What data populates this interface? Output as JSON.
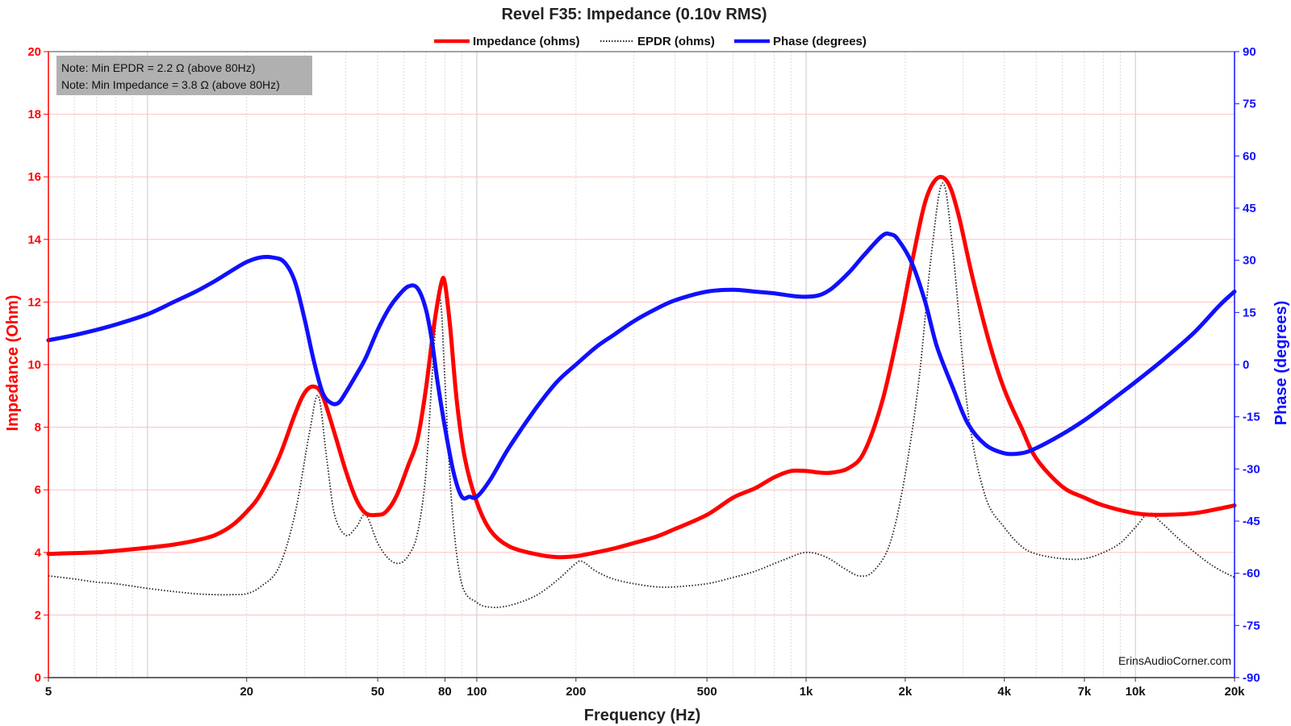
{
  "chart_data": {
    "type": "line",
    "title": "Revel F35: Impedance (0.10v RMS)",
    "xlabel": "Frequency (Hz)",
    "ylabel": "Impedance (Ohm)",
    "y2label": "Phase (degrees)",
    "xscale": "log",
    "xlim": [
      5,
      20000
    ],
    "ylim": [
      0,
      20
    ],
    "y2lim": [
      -90,
      90
    ],
    "x_ticks": [
      5,
      20,
      50,
      80,
      100,
      200,
      500,
      1000,
      2000,
      4000,
      7000,
      10000,
      20000
    ],
    "x_tick_labels": [
      "5",
      "20",
      "50",
      "80",
      "100",
      "200",
      "500",
      "1k",
      "2k",
      "4k",
      "7k",
      "10k",
      "20k"
    ],
    "y_ticks": [
      0,
      2,
      4,
      6,
      8,
      10,
      12,
      14,
      16,
      18,
      20
    ],
    "y_tick_labels": [
      "0",
      "2",
      "4",
      "6",
      "8",
      "10",
      "12",
      "14",
      "16",
      "18",
      "20"
    ],
    "y2_ticks": [
      -90,
      -75,
      -60,
      -45,
      -30,
      -15,
      0,
      15,
      30,
      45,
      60,
      75,
      90
    ],
    "y2_tick_labels": [
      "-90",
      "-75",
      "-60",
      "-45",
      "-30",
      "-15",
      "0",
      "15",
      "30",
      "45",
      "60",
      "75",
      "90"
    ],
    "grid": true,
    "legend_position": "top-center",
    "notes": [
      "Note: Min EPDR = 2.2 Ω (above 80Hz)",
      "Note: Min Impedance = 3.8 Ω (above 80Hz)"
    ],
    "watermark": "ErinsAudioCorner.com",
    "series": [
      {
        "name": "Impedance (ohms)",
        "axis": "left",
        "color": "#ff0000",
        "style": "solid",
        "points": [
          [
            5,
            3.95
          ],
          [
            6,
            3.98
          ],
          [
            7,
            4.0
          ],
          [
            8,
            4.05
          ],
          [
            10,
            4.15
          ],
          [
            12,
            4.25
          ],
          [
            14,
            4.38
          ],
          [
            16,
            4.55
          ],
          [
            18,
            4.85
          ],
          [
            20,
            5.3
          ],
          [
            22,
            5.85
          ],
          [
            25,
            7.0
          ],
          [
            28,
            8.4
          ],
          [
            30,
            9.1
          ],
          [
            32,
            9.3
          ],
          [
            34,
            9.0
          ],
          [
            37,
            7.8
          ],
          [
            40,
            6.6
          ],
          [
            43,
            5.7
          ],
          [
            46,
            5.25
          ],
          [
            50,
            5.2
          ],
          [
            53,
            5.3
          ],
          [
            57,
            5.8
          ],
          [
            62,
            6.8
          ],
          [
            66,
            7.6
          ],
          [
            70,
            9.2
          ],
          [
            74,
            11.2
          ],
          [
            78,
            12.6
          ],
          [
            80,
            12.6
          ],
          [
            83,
            11.2
          ],
          [
            87,
            8.8
          ],
          [
            92,
            7.0
          ],
          [
            100,
            5.6
          ],
          [
            110,
            4.7
          ],
          [
            125,
            4.2
          ],
          [
            150,
            3.95
          ],
          [
            175,
            3.85
          ],
          [
            200,
            3.88
          ],
          [
            230,
            4.0
          ],
          [
            260,
            4.12
          ],
          [
            300,
            4.3
          ],
          [
            350,
            4.5
          ],
          [
            400,
            4.75
          ],
          [
            500,
            5.2
          ],
          [
            600,
            5.75
          ],
          [
            700,
            6.05
          ],
          [
            800,
            6.4
          ],
          [
            900,
            6.6
          ],
          [
            1000,
            6.6
          ],
          [
            1100,
            6.55
          ],
          [
            1200,
            6.55
          ],
          [
            1350,
            6.7
          ],
          [
            1500,
            7.2
          ],
          [
            1700,
            8.8
          ],
          [
            1900,
            11.0
          ],
          [
            2100,
            13.3
          ],
          [
            2300,
            15.2
          ],
          [
            2500,
            15.95
          ],
          [
            2700,
            15.8
          ],
          [
            2900,
            14.8
          ],
          [
            3200,
            12.8
          ],
          [
            3600,
            10.7
          ],
          [
            4000,
            9.2
          ],
          [
            4500,
            8.0
          ],
          [
            5000,
            7.0
          ],
          [
            6000,
            6.1
          ],
          [
            7000,
            5.75
          ],
          [
            8000,
            5.5
          ],
          [
            10000,
            5.25
          ],
          [
            12000,
            5.2
          ],
          [
            15000,
            5.25
          ],
          [
            18000,
            5.4
          ],
          [
            20000,
            5.5
          ]
        ]
      },
      {
        "name": "EPDR (ohms)",
        "axis": "left",
        "color": "#222222",
        "style": "dotted",
        "points": [
          [
            5,
            3.25
          ],
          [
            6,
            3.15
          ],
          [
            7,
            3.05
          ],
          [
            8,
            3.0
          ],
          [
            10,
            2.85
          ],
          [
            12,
            2.75
          ],
          [
            14,
            2.68
          ],
          [
            16,
            2.65
          ],
          [
            18,
            2.65
          ],
          [
            20,
            2.68
          ],
          [
            22,
            2.9
          ],
          [
            25,
            3.5
          ],
          [
            28,
            5.2
          ],
          [
            31,
            7.8
          ],
          [
            33,
            9.0
          ],
          [
            35,
            7.0
          ],
          [
            37,
            5.2
          ],
          [
            40,
            4.55
          ],
          [
            43,
            4.8
          ],
          [
            46,
            5.2
          ],
          [
            50,
            4.3
          ],
          [
            54,
            3.8
          ],
          [
            58,
            3.65
          ],
          [
            62,
            3.9
          ],
          [
            66,
            4.6
          ],
          [
            70,
            6.5
          ],
          [
            73,
            9.5
          ],
          [
            76,
            12.0
          ],
          [
            78,
            11.8
          ],
          [
            80,
            9.5
          ],
          [
            84,
            5.5
          ],
          [
            90,
            3.0
          ],
          [
            100,
            2.4
          ],
          [
            110,
            2.25
          ],
          [
            125,
            2.3
          ],
          [
            150,
            2.6
          ],
          [
            175,
            3.1
          ],
          [
            200,
            3.65
          ],
          [
            210,
            3.7
          ],
          [
            230,
            3.4
          ],
          [
            260,
            3.15
          ],
          [
            300,
            3.0
          ],
          [
            350,
            2.9
          ],
          [
            400,
            2.9
          ],
          [
            500,
            3.0
          ],
          [
            600,
            3.2
          ],
          [
            700,
            3.4
          ],
          [
            850,
            3.75
          ],
          [
            1000,
            4.0
          ],
          [
            1150,
            3.85
          ],
          [
            1300,
            3.5
          ],
          [
            1450,
            3.25
          ],
          [
            1600,
            3.4
          ],
          [
            1800,
            4.3
          ],
          [
            2000,
            6.5
          ],
          [
            2200,
            9.5
          ],
          [
            2400,
            13.5
          ],
          [
            2600,
            15.8
          ],
          [
            2800,
            13.5
          ],
          [
            3100,
            8.5
          ],
          [
            3500,
            5.8
          ],
          [
            4000,
            4.8
          ],
          [
            4500,
            4.2
          ],
          [
            5000,
            3.95
          ],
          [
            6000,
            3.8
          ],
          [
            7000,
            3.8
          ],
          [
            8000,
            4.0
          ],
          [
            9000,
            4.3
          ],
          [
            10000,
            4.8
          ],
          [
            11000,
            5.25
          ],
          [
            12000,
            4.95
          ],
          [
            14000,
            4.3
          ],
          [
            17000,
            3.6
          ],
          [
            20000,
            3.2
          ]
        ]
      },
      {
        "name": "Phase (degrees)",
        "axis": "right",
        "color": "#1010ff",
        "style": "solid",
        "points": [
          [
            5,
            7
          ],
          [
            6,
            8.5
          ],
          [
            7,
            10
          ],
          [
            8,
            11.5
          ],
          [
            10,
            14.5
          ],
          [
            12,
            18
          ],
          [
            14,
            21
          ],
          [
            16,
            24
          ],
          [
            18,
            27
          ],
          [
            20,
            29.5
          ],
          [
            22,
            30.8
          ],
          [
            24,
            30.8
          ],
          [
            26,
            29.5
          ],
          [
            28,
            24
          ],
          [
            30,
            13
          ],
          [
            32,
            1
          ],
          [
            34,
            -8
          ],
          [
            36,
            -11
          ],
          [
            38,
            -11
          ],
          [
            40,
            -8
          ],
          [
            43,
            -3
          ],
          [
            46,
            2
          ],
          [
            50,
            10
          ],
          [
            54,
            16
          ],
          [
            58,
            20
          ],
          [
            62,
            22.5
          ],
          [
            66,
            22
          ],
          [
            70,
            16
          ],
          [
            73,
            7
          ],
          [
            76,
            -5
          ],
          [
            80,
            -18
          ],
          [
            85,
            -31
          ],
          [
            90,
            -38
          ],
          [
            95,
            -38
          ],
          [
            100,
            -38
          ],
          [
            110,
            -33
          ],
          [
            125,
            -24
          ],
          [
            150,
            -13
          ],
          [
            175,
            -5
          ],
          [
            200,
            0
          ],
          [
            230,
            5
          ],
          [
            260,
            8.5
          ],
          [
            300,
            12.5
          ],
          [
            350,
            16
          ],
          [
            400,
            18.5
          ],
          [
            500,
            21
          ],
          [
            600,
            21.5
          ],
          [
            700,
            21
          ],
          [
            800,
            20.5
          ],
          [
            900,
            19.8
          ],
          [
            1000,
            19.5
          ],
          [
            1100,
            20
          ],
          [
            1200,
            22
          ],
          [
            1350,
            26.5
          ],
          [
            1500,
            31.5
          ],
          [
            1700,
            37
          ],
          [
            1800,
            37.5
          ],
          [
            1900,
            36
          ],
          [
            2100,
            29
          ],
          [
            2300,
            18
          ],
          [
            2500,
            5
          ],
          [
            2800,
            -7
          ],
          [
            3100,
            -17
          ],
          [
            3500,
            -23
          ],
          [
            4000,
            -25.5
          ],
          [
            4500,
            -25.5
          ],
          [
            5000,
            -24
          ],
          [
            6000,
            -20
          ],
          [
            7000,
            -16
          ],
          [
            8000,
            -12
          ],
          [
            10000,
            -5
          ],
          [
            12000,
            1
          ],
          [
            15000,
            9
          ],
          [
            18000,
            17
          ],
          [
            20000,
            21
          ]
        ]
      }
    ]
  }
}
